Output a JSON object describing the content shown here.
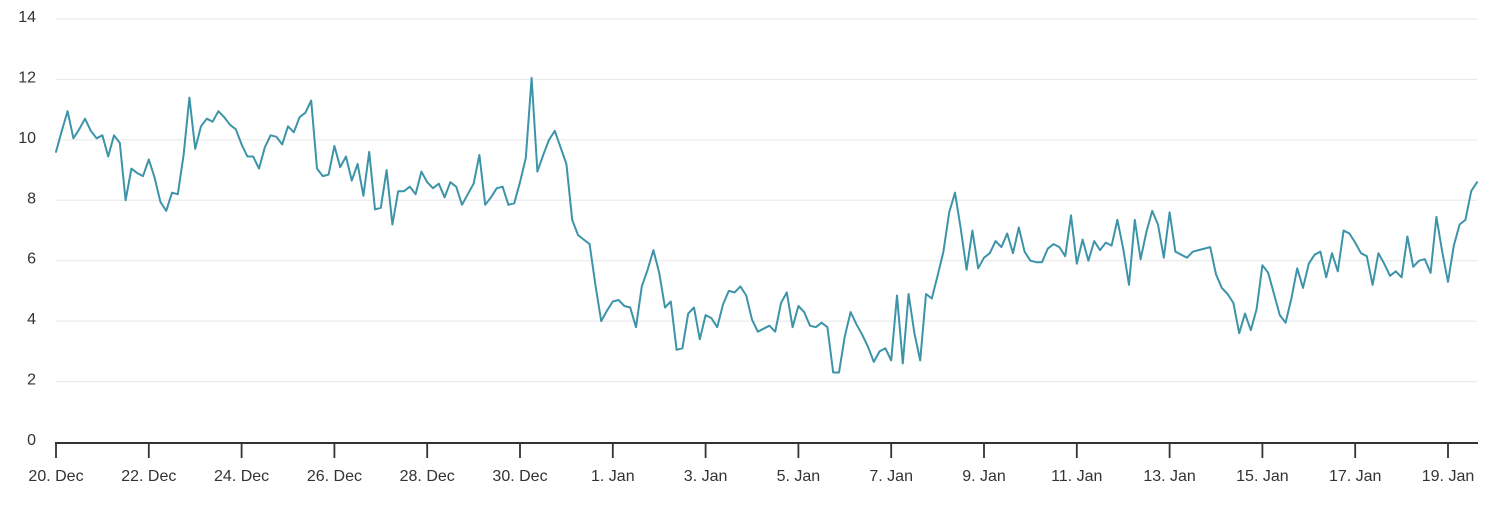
{
  "chart_data": {
    "type": "line",
    "title": "",
    "xlabel": "",
    "ylabel": "",
    "grid": "horizontal",
    "legend": "none",
    "line_color": "#3d94a9",
    "grid_color": "#e6e6e6",
    "axis_line_color": "#333333",
    "label_color": "#333333",
    "x_tick_labels": [
      "20. Dec",
      "22. Dec",
      "24. Dec",
      "26. Dec",
      "28. Dec",
      "30. Dec",
      "1. Jan",
      "3. Jan",
      "5. Jan",
      "7. Jan",
      "9. Jan",
      "11. Jan",
      "13. Jan",
      "15. Jan",
      "17. Jan",
      "19. Jan"
    ],
    "x_range_description": "20 Dec 00:00 to 19 Jan, one point every 3 hours",
    "points_interval_hours": 3,
    "y_ticks": [
      0,
      2,
      4,
      6,
      8,
      10,
      12,
      14
    ],
    "ylim": [
      0,
      14
    ],
    "values": [
      9.6,
      10.3,
      10.95,
      10.05,
      10.35,
      10.7,
      10.3,
      10.05,
      10.15,
      9.45,
      10.15,
      9.9,
      8.0,
      9.05,
      8.9,
      8.8,
      9.35,
      8.75,
      7.95,
      7.65,
      8.25,
      8.2,
      9.5,
      11.4,
      9.7,
      10.45,
      10.7,
      10.6,
      10.95,
      10.75,
      10.5,
      10.35,
      9.85,
      9.45,
      9.45,
      9.05,
      9.75,
      10.15,
      10.1,
      9.85,
      10.45,
      10.25,
      10.75,
      10.9,
      11.3,
      9.05,
      8.8,
      8.85,
      9.8,
      9.1,
      9.45,
      8.65,
      9.2,
      8.15,
      9.6,
      7.7,
      7.75,
      9.0,
      7.2,
      8.3,
      8.3,
      8.45,
      8.2,
      8.95,
      8.6,
      8.4,
      8.55,
      8.1,
      8.6,
      8.45,
      7.85,
      8.2,
      8.55,
      9.5,
      7.85,
      8.1,
      8.4,
      8.45,
      7.85,
      7.9,
      8.6,
      9.4,
      12.05,
      8.95,
      9.5,
      10.0,
      10.3,
      9.75,
      9.2,
      7.35,
      6.85,
      6.7,
      6.55,
      5.2,
      4.0,
      4.35,
      4.65,
      4.7,
      4.5,
      4.45,
      3.8,
      5.15,
      5.7,
      6.35,
      5.6,
      4.45,
      4.65,
      3.05,
      3.1,
      4.25,
      4.45,
      3.4,
      4.2,
      4.1,
      3.8,
      4.55,
      5.0,
      4.95,
      5.15,
      4.85,
      4.05,
      3.65,
      3.75,
      3.85,
      3.65,
      4.6,
      4.95,
      3.8,
      4.5,
      4.3,
      3.85,
      3.8,
      3.95,
      3.8,
      2.3,
      2.3,
      3.5,
      4.3,
      3.9,
      3.55,
      3.15,
      2.65,
      3.0,
      3.1,
      2.7,
      4.85,
      2.6,
      4.9,
      3.6,
      2.7,
      4.9,
      4.75,
      5.5,
      6.3,
      7.6,
      8.25,
      7.05,
      5.7,
      7.0,
      5.75,
      6.1,
      6.25,
      6.65,
      6.45,
      6.9,
      6.25,
      7.1,
      6.3,
      6.0,
      5.95,
      5.95,
      6.4,
      6.55,
      6.45,
      6.15,
      7.5,
      5.9,
      6.7,
      6.0,
      6.65,
      6.35,
      6.6,
      6.5,
      7.35,
      6.4,
      5.2,
      7.35,
      6.05,
      6.95,
      7.65,
      7.2,
      6.1,
      7.6,
      6.3,
      6.2,
      6.1,
      6.3,
      6.35,
      6.4,
      6.45,
      5.55,
      5.1,
      4.9,
      4.6,
      3.6,
      4.25,
      3.7,
      4.4,
      5.85,
      5.6,
      4.9,
      4.2,
      3.95,
      4.75,
      5.75,
      5.1,
      5.9,
      6.2,
      6.3,
      5.45,
      6.25,
      5.65,
      7.0,
      6.9,
      6.6,
      6.25,
      6.15,
      5.2,
      6.25,
      5.9,
      5.5,
      5.65,
      5.45,
      6.8,
      5.8,
      6.0,
      6.05,
      5.6,
      7.45,
      6.3,
      5.3,
      6.5,
      7.2,
      7.35,
      8.3,
      8.6
    ]
  }
}
